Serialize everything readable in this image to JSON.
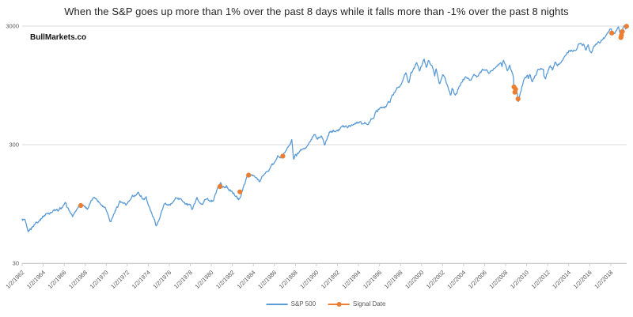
{
  "header": {
    "title": "When the S&P goes up more than 1% over the past 8 days while it falls more than -1% over the past 8 nights",
    "watermark": "BullMarkets.co"
  },
  "legend": [
    {
      "label": "S&P 500",
      "color": "#5B9BD5",
      "marker": "line"
    },
    {
      "label": "Signal Date",
      "color": "#ED7D31",
      "marker": "line-dot"
    }
  ],
  "colors": {
    "sp500_line": "#5B9BD5",
    "signal": "#ED7D31",
    "gridline": "#DADADA",
    "axis_line": "#C9C9C9",
    "tick_label": "#595959",
    "title_text": "#262626",
    "background": "#FFFFFF"
  },
  "chart_data": {
    "type": "line",
    "title": "When the S&P goes up more than 1% over the past 8 days while it falls more than -1% over the past 8 nights",
    "xlabel": "",
    "ylabel": "",
    "y_scale": "log",
    "ylim": [
      30,
      3000
    ],
    "y_ticks": [
      3000,
      300,
      30
    ],
    "grid": "horizontal-only",
    "legend_position": "bottom-center",
    "x_tick_labels": [
      "1/2/1962",
      "1/2/1964",
      "1/2/1966",
      "1/2/1968",
      "1/2/1970",
      "1/2/1972",
      "1/2/1974",
      "1/2/1976",
      "1/2/1978",
      "1/2/1980",
      "1/2/1982",
      "1/2/1984",
      "1/2/1986",
      "1/2/1988",
      "1/2/1990",
      "1/2/1992",
      "1/2/1994",
      "1/2/1996",
      "1/2/1998",
      "1/2/2000",
      "1/2/2002",
      "1/2/2004",
      "1/2/2006",
      "1/2/2008",
      "1/2/2010",
      "1/2/2012",
      "1/2/2014",
      "1/2/2016",
      "1/2/2018"
    ],
    "x_range_years": [
      1962.0,
      2019.6
    ],
    "series": [
      {
        "name": "S&P 500",
        "color": "#5B9BD5",
        "anchors": [
          [
            1962.0,
            70
          ],
          [
            1962.25,
            69
          ],
          [
            1962.55,
            52.3
          ],
          [
            1962.8,
            57
          ],
          [
            1963.3,
            66
          ],
          [
            1964.0,
            76
          ],
          [
            1965.0,
            85
          ],
          [
            1965.45,
            81.6
          ],
          [
            1966.1,
            93.5
          ],
          [
            1966.8,
            73.2
          ],
          [
            1967.4,
            92
          ],
          [
            1967.75,
            95
          ],
          [
            1968.2,
            88
          ],
          [
            1968.92,
            108.4
          ],
          [
            1969.4,
            98
          ],
          [
            1969.95,
            90
          ],
          [
            1970.42,
            69.3
          ],
          [
            1971.3,
            101
          ],
          [
            1971.85,
            91
          ],
          [
            1972.98,
            119.2
          ],
          [
            1973.6,
            104
          ],
          [
            1973.8,
            111
          ],
          [
            1974.0,
            94
          ],
          [
            1974.76,
            62.3
          ],
          [
            1975.5,
            95.6
          ],
          [
            1975.95,
            89
          ],
          [
            1976.7,
            107.8
          ],
          [
            1977.5,
            99
          ],
          [
            1978.17,
            86.9
          ],
          [
            1978.65,
            106
          ],
          [
            1978.88,
            93
          ],
          [
            1979.6,
            108
          ],
          [
            1979.85,
            100
          ],
          [
            1980.2,
            98.2
          ],
          [
            1980.9,
            140.5
          ],
          [
            1981.05,
            129
          ],
          [
            1981.45,
            136
          ],
          [
            1982.6,
            102.4
          ],
          [
            1983.5,
            170
          ],
          [
            1983.95,
            163
          ],
          [
            1984.55,
            147.8
          ],
          [
            1985.0,
            167
          ],
          [
            1985.95,
            207
          ],
          [
            1986.3,
            238
          ],
          [
            1986.6,
            230
          ],
          [
            1986.95,
            248
          ],
          [
            1987.65,
            336
          ],
          [
            1987.83,
            224
          ],
          [
            1987.95,
            245
          ],
          [
            1988.1,
            243
          ],
          [
            1988.5,
            270
          ],
          [
            1989.0,
            278
          ],
          [
            1989.8,
            359
          ],
          [
            1990.1,
            330
          ],
          [
            1990.48,
            368
          ],
          [
            1990.78,
            295
          ],
          [
            1991.2,
            375
          ],
          [
            1991.98,
            417
          ],
          [
            1993.0,
            435
          ],
          [
            1994.1,
            480
          ],
          [
            1994.35,
            445
          ],
          [
            1994.95,
            460
          ],
          [
            1996.0,
            615
          ],
          [
            1996.6,
            630
          ],
          [
            1997.2,
            760
          ],
          [
            1997.8,
            945
          ],
          [
            1998.0,
            975
          ],
          [
            1998.53,
            1186
          ],
          [
            1998.78,
            959
          ],
          [
            1999.0,
            1229
          ],
          [
            1999.55,
            1415
          ],
          [
            1999.8,
            1260
          ],
          [
            2000.23,
            1527
          ],
          [
            2000.45,
            1370
          ],
          [
            2000.68,
            1515
          ],
          [
            2001.0,
            1330
          ],
          [
            2001.25,
            1125
          ],
          [
            2001.4,
            1295
          ],
          [
            2001.73,
            966
          ],
          [
            2002.0,
            1154
          ],
          [
            2002.25,
            1100
          ],
          [
            2002.78,
            776
          ],
          [
            2002.9,
            925
          ],
          [
            2003.2,
            800
          ],
          [
            2003.95,
            1060
          ],
          [
            2004.2,
            1140
          ],
          [
            2004.6,
            1065
          ],
          [
            2005.0,
            1210
          ],
          [
            2005.32,
            1140
          ],
          [
            2006.0,
            1290
          ],
          [
            2006.5,
            1225
          ],
          [
            2007.55,
            1553
          ],
          [
            2007.63,
            1410
          ],
          [
            2007.78,
            1565
          ],
          [
            2008.2,
            1280
          ],
          [
            2008.4,
            1420
          ],
          [
            2008.68,
            1200
          ],
          [
            2008.74,
            1150
          ],
          [
            2008.8,
            880
          ],
          [
            2008.88,
            800
          ],
          [
            2008.97,
            890
          ],
          [
            2009.08,
            820
          ],
          [
            2009.19,
            677
          ],
          [
            2009.75,
            1080
          ],
          [
            2010.08,
            1140
          ],
          [
            2010.15,
            1065
          ],
          [
            2010.32,
            1217
          ],
          [
            2010.55,
            1023
          ],
          [
            2010.98,
            1257
          ],
          [
            2011.35,
            1364
          ],
          [
            2011.6,
            1285
          ],
          [
            2011.63,
            1120
          ],
          [
            2011.78,
            1100
          ],
          [
            2012.25,
            1419
          ],
          [
            2012.45,
            1278
          ],
          [
            2012.73,
            1466
          ],
          [
            2012.88,
            1355
          ],
          [
            2013.99,
            1848
          ],
          [
            2014.73,
            1862
          ],
          [
            2014.95,
            2085
          ],
          [
            2015.38,
            2120
          ],
          [
            2015.63,
            1868
          ],
          [
            2015.85,
            2100
          ],
          [
            2016.12,
            1829
          ],
          [
            2016.55,
            2120
          ],
          [
            2017.0,
            2257
          ],
          [
            2017.6,
            2470
          ],
          [
            2018.07,
            2873
          ],
          [
            2018.12,
            2581
          ],
          [
            2018.25,
            2640
          ],
          [
            2018.45,
            2780
          ],
          [
            2018.73,
            2931
          ],
          [
            2018.88,
            2650
          ],
          [
            2018.985,
            2351
          ],
          [
            2019.15,
            2780
          ],
          [
            2019.33,
            2946
          ],
          [
            2019.43,
            2750
          ],
          [
            2019.54,
            2995
          ]
        ]
      },
      {
        "name": "Signal Date",
        "color": "#ED7D31",
        "points": [
          {
            "date": "8/1967",
            "year": 1967.58,
            "value": 92
          },
          {
            "date": "11/1980",
            "year": 1980.82,
            "value": 133
          },
          {
            "date": "9/1982",
            "year": 1982.72,
            "value": 120
          },
          {
            "date": "6/1983",
            "year": 1983.55,
            "value": 166
          },
          {
            "date": "11/1986",
            "year": 1986.8,
            "value": 240
          },
          {
            "date": "10/2008",
            "year": 2008.8,
            "value": 920
          },
          {
            "date": "11/2008",
            "year": 2008.88,
            "value": 830
          },
          {
            "date": "12/2008",
            "year": 2008.95,
            "value": 880
          },
          {
            "date": "3/2009",
            "year": 2009.18,
            "value": 730
          },
          {
            "date": "2/2018",
            "year": 2018.1,
            "value": 2620
          },
          {
            "date": "12/2018",
            "year": 2018.97,
            "value": 2400
          },
          {
            "date": "1/2019",
            "year": 2019.02,
            "value": 2510
          },
          {
            "date": "2/2019",
            "year": 2019.1,
            "value": 2700
          },
          {
            "date": "7/2019",
            "year": 2019.5,
            "value": 2990
          }
        ]
      }
    ]
  }
}
